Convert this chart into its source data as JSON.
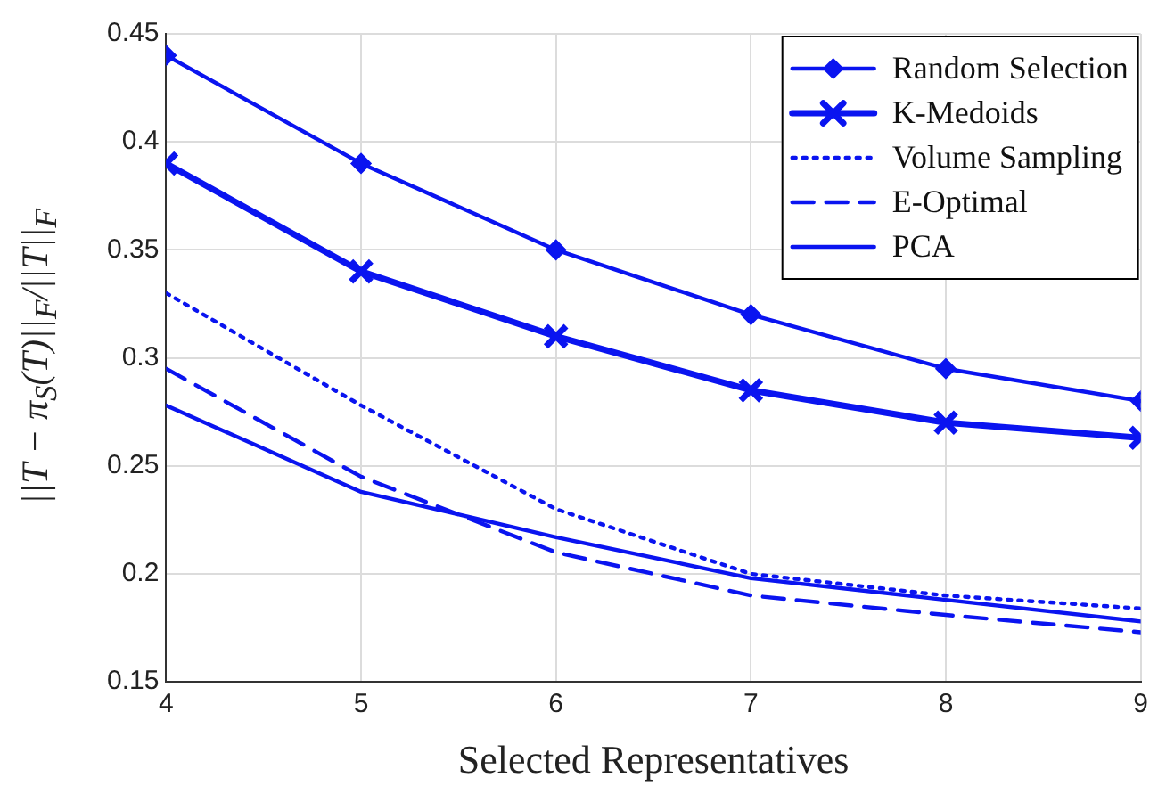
{
  "chart_data": {
    "type": "line",
    "xlabel": "Selected Representatives",
    "ylabel": "||T − π$_{S}$(T)||$_{F}$/||T||$_{F}$",
    "x": [
      4,
      5,
      6,
      7,
      8,
      9
    ],
    "xlim": [
      4,
      9
    ],
    "xticks": [
      4,
      5,
      6,
      7,
      8,
      9
    ],
    "ylim": [
      0.15,
      0.45
    ],
    "yticks": [
      0.15,
      0.2,
      0.25,
      0.3,
      0.35,
      0.4,
      0.45
    ],
    "grid": true,
    "legend": "top right",
    "series": [
      {
        "name": "Random Selection",
        "color": "#0a14f0",
        "marker": "diamond",
        "line_style": "solid",
        "values": [
          0.44,
          0.39,
          0.35,
          0.32,
          0.295,
          0.28
        ]
      },
      {
        "name": "K-Medoids",
        "color": "#0a14f0",
        "marker": "cross",
        "line_style": "solid",
        "values": [
          0.39,
          0.34,
          0.31,
          0.285,
          0.27,
          0.263
        ]
      },
      {
        "name": "Volume Sampling",
        "color": "#0a14f0",
        "marker": "none",
        "line_style": "dotted",
        "values": [
          0.33,
          0.278,
          0.23,
          0.2,
          0.19,
          0.184
        ]
      },
      {
        "name": "E-Optimal",
        "color": "#0a14f0",
        "marker": "none",
        "line_style": "dashed",
        "values": [
          0.295,
          0.245,
          0.21,
          0.19,
          0.181,
          0.173
        ]
      },
      {
        "name": "PCA",
        "color": "#0a14f0",
        "marker": "none",
        "line_style": "solid",
        "values": [
          0.278,
          0.238,
          0.217,
          0.198,
          0.188,
          0.178
        ]
      }
    ]
  }
}
